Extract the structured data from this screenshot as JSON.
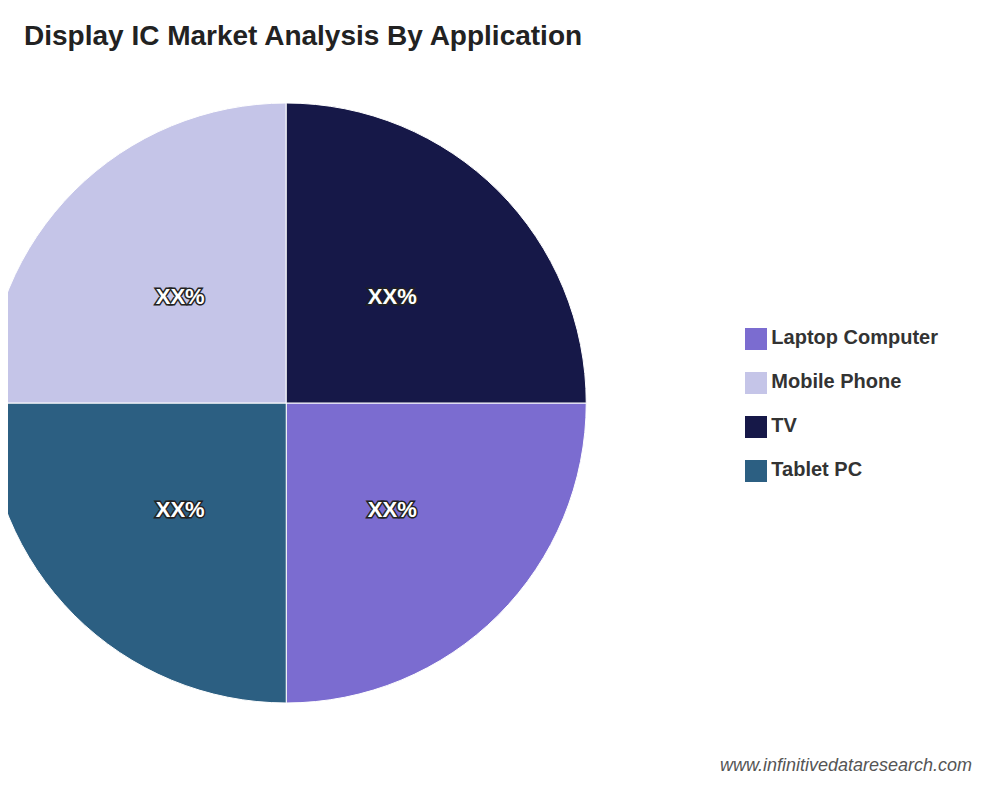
{
  "chart_data": {
    "type": "pie",
    "title": "Display IC Market Analysis By Application",
    "categories": [
      "Laptop Computer",
      "Tablet PC",
      "Mobile Phone",
      "TV"
    ],
    "values": [
      25,
      25,
      25,
      25
    ],
    "value_labels": [
      "XX%",
      "XX%",
      "XX%",
      "XX%"
    ],
    "colors": [
      "#7B6CD0",
      "#2C5F82",
      "#C5C5E8",
      "#161848"
    ],
    "data_labels": true,
    "legend": "right",
    "annotations": [
      "www.infinitivedataresearch.com"
    ]
  }
}
